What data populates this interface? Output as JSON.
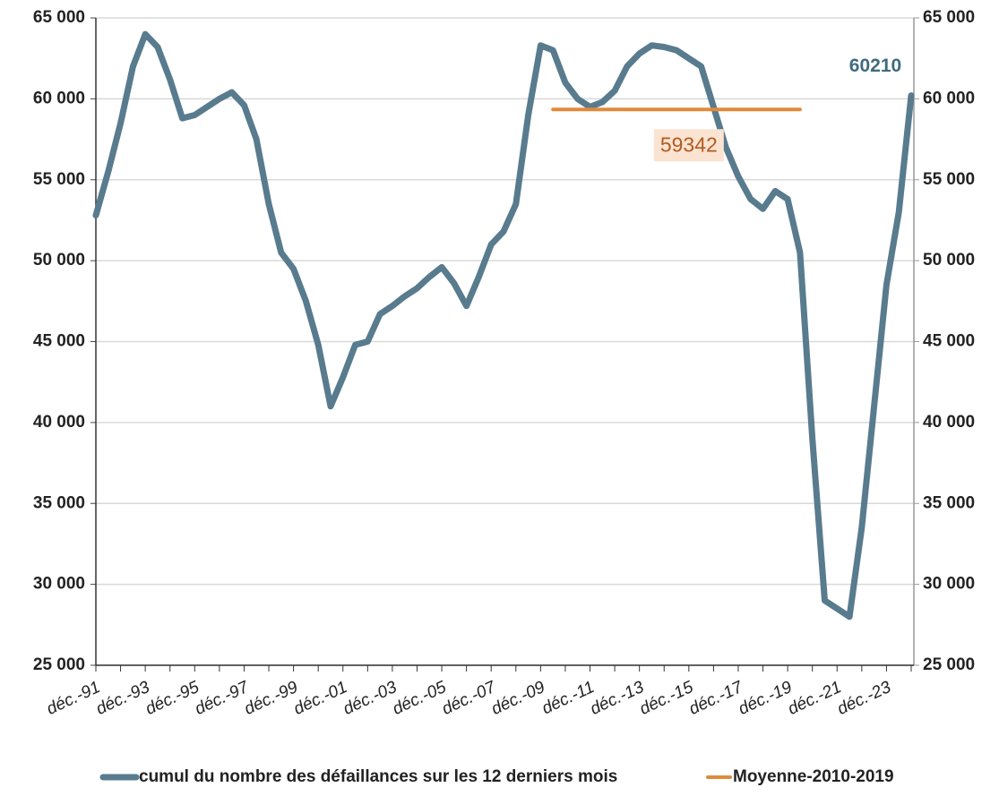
{
  "chart_data": {
    "type": "line",
    "categories": [
      "déc.-91",
      null,
      null,
      null,
      "déc.-93",
      null,
      null,
      null,
      "déc.-95",
      null,
      null,
      null,
      "déc.-97",
      null,
      null,
      null,
      "déc.-99",
      null,
      null,
      null,
      "déc.-01",
      null,
      null,
      null,
      "déc.-03",
      null,
      null,
      null,
      "déc.-05",
      null,
      null,
      null,
      "déc.-07",
      null,
      null,
      null,
      "déc.-09",
      null,
      null,
      null,
      "déc.-11",
      null,
      null,
      null,
      "déc.-13",
      null,
      null,
      null,
      "déc.-15",
      null,
      null,
      null,
      "déc.-17",
      null,
      null,
      null,
      "déc.-19",
      null,
      null,
      null,
      "déc.-21",
      null,
      null,
      null,
      "déc.-23",
      null,
      null
    ],
    "series": [
      {
        "name": "cumul du nombre des défaillances sur les 12 derniers mois",
        "color": "#587b8e",
        "values": [
          52800,
          55500,
          58500,
          62000,
          64000,
          63200,
          61200,
          58800,
          59000,
          59500,
          60000,
          60400,
          59600,
          57500,
          53500,
          50500,
          49500,
          47500,
          44800,
          41000,
          42800,
          44800,
          45000,
          46700,
          47200,
          47800,
          48300,
          49000,
          49600,
          48600,
          47200,
          49000,
          51000,
          51800,
          53500,
          59000,
          63300,
          63000,
          61000,
          60000,
          59500,
          59800,
          60500,
          62000,
          62800,
          63300,
          63200,
          63000,
          62500,
          62000,
          59500,
          57000,
          55200,
          53800,
          53200,
          54300,
          53800,
          50500,
          39000,
          29000,
          28500,
          28000,
          33500,
          41000,
          48500,
          53000,
          60210
        ]
      },
      {
        "name": "Moyenne-2010-2019",
        "color": "#e08a3c",
        "values": [
          null,
          null,
          null,
          null,
          null,
          null,
          null,
          null,
          null,
          null,
          null,
          null,
          null,
          null,
          null,
          null,
          null,
          null,
          null,
          null,
          null,
          null,
          null,
          null,
          null,
          null,
          null,
          null,
          null,
          null,
          null,
          null,
          null,
          null,
          null,
          null,
          null,
          59342,
          59342,
          59342,
          59342,
          59342,
          59342,
          59342,
          59342,
          59342,
          59342,
          59342,
          59342,
          59342,
          59342,
          59342,
          59342,
          59342,
          59342,
          59342,
          59342,
          59342,
          null,
          null,
          null,
          null,
          null,
          null,
          null,
          null,
          null
        ]
      }
    ],
    "ylim": [
      25000,
      65000
    ],
    "yticks": [
      {
        "value": 25000,
        "label": "25 000"
      },
      {
        "value": 30000,
        "label": "30 000"
      },
      {
        "value": 35000,
        "label": "35 000"
      },
      {
        "value": 40000,
        "label": "40 000"
      },
      {
        "value": 45000,
        "label": "45 000"
      },
      {
        "value": 50000,
        "label": "50 000"
      },
      {
        "value": 55000,
        "label": "55 000"
      },
      {
        "value": 60000,
        "label": "60 000"
      },
      {
        "value": 65000,
        "label": "65 000"
      }
    ],
    "y2lim": [
      25000,
      65000
    ],
    "y2ticks": [
      {
        "value": 25000,
        "label": "25 000"
      },
      {
        "value": 30000,
        "label": "30 000"
      },
      {
        "value": 35000,
        "label": "35 000"
      },
      {
        "value": 40000,
        "label": "40 000"
      },
      {
        "value": 45000,
        "label": "45 000"
      },
      {
        "value": 50000,
        "label": "50 000"
      },
      {
        "value": 55000,
        "label": "55 000"
      },
      {
        "value": 60000,
        "label": "60 000"
      },
      {
        "value": 65000,
        "label": "65 000"
      }
    ],
    "grid": true,
    "legend": "bottom"
  }
}
